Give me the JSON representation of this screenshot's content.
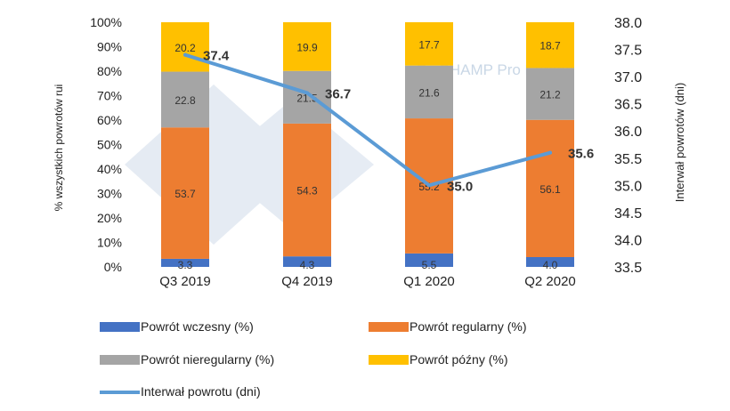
{
  "chart_data": {
    "type": "stacked-bar-with-line",
    "categories": [
      "Q3 2019",
      "Q4 2019",
      "Q1 2020",
      "Q2 2020"
    ],
    "series": [
      {
        "name": "Powrót wczesny (%)",
        "color": "#4472c4",
        "values": [
          3.3,
          4.3,
          5.5,
          4.0
        ],
        "labels": [
          "3.3",
          "4.3",
          "5.5",
          "4.0"
        ]
      },
      {
        "name": "Powrót regularny (%)",
        "color": "#ed7d31",
        "values": [
          53.7,
          54.3,
          55.2,
          56.1
        ],
        "labels": [
          "53.7",
          "54.3",
          "55.2",
          "56.1"
        ]
      },
      {
        "name": "Powrót nieregularny (%)",
        "color": "#a5a5a5",
        "values": [
          22.8,
          21.5,
          21.6,
          21.2
        ],
        "labels": [
          "22.8",
          "21.5",
          "21.6",
          "21.2"
        ]
      },
      {
        "name": "Powrót późny (%)",
        "color": "#ffc000",
        "values": [
          20.2,
          19.9,
          17.7,
          18.7
        ],
        "labels": [
          "20.2",
          "19.9",
          "17.7",
          "18.7"
        ]
      }
    ],
    "line": {
      "name": "Interwał powrotu (dni)",
      "color": "#5b9bd5",
      "values": [
        37.4,
        36.7,
        35.0,
        35.6
      ],
      "labels": [
        "37.4",
        "36.7",
        "35.0",
        "35.6"
      ]
    },
    "y_left": {
      "label": "% wszystkich powrotów rui",
      "min": 0,
      "max": 100,
      "ticks": [
        "0%",
        "10%",
        "20%",
        "30%",
        "40%",
        "50%",
        "60%",
        "70%",
        "80%",
        "90%",
        "100%"
      ]
    },
    "y_right": {
      "label": "Interwał powrotów  (dni)",
      "min": 33.5,
      "max": 38.0,
      "ticks": [
        "33.5",
        "34.0",
        "34.5",
        "35.0",
        "35.5",
        "36.0",
        "36.5",
        "37.0",
        "37.5",
        "38.0"
      ]
    },
    "legend_order": [
      "Powrót wczesny (%)",
      "Powrót regularny (%)",
      "Powrót nieregularny (%)",
      "Powrót późny (%)",
      "Interwał powrotu (dni)"
    ],
    "watermark": "PigCHAMP Pro Europa"
  }
}
